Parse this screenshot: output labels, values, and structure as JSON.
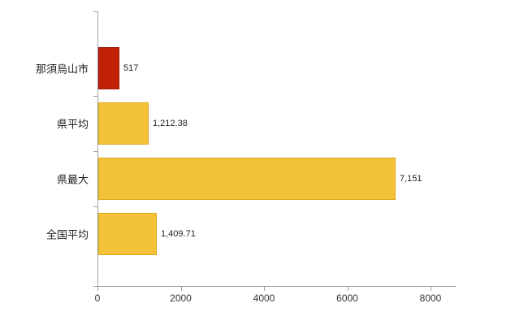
{
  "chart_data": {
    "type": "bar",
    "orientation": "horizontal",
    "title": "",
    "xlabel": "",
    "ylabel": "",
    "categories": [
      "那須烏山市",
      "県平均",
      "県最大",
      "全国平均"
    ],
    "values": [
      517,
      1212.38,
      7151,
      1409.71
    ],
    "value_labels": [
      "517",
      "1,212.38",
      "7,151",
      "1,409.71"
    ],
    "bar_colors": [
      "#c32106",
      "#f3c237",
      "#f3c237",
      "#f3c237"
    ],
    "bar_border_colors": [
      "#9a1a04",
      "#dca81f",
      "#dca81f",
      "#dca81f"
    ],
    "xlim": [
      0,
      8000
    ],
    "x_ticks": [
      0,
      2000,
      4000,
      6000,
      8000
    ],
    "x_tick_labels": [
      "0",
      "2000",
      "4000",
      "6000",
      "8000"
    ],
    "grid": false,
    "legend": "none"
  },
  "colors": {
    "axis": "#a0a0a0",
    "text": "#222222",
    "background": "#ffffff"
  }
}
